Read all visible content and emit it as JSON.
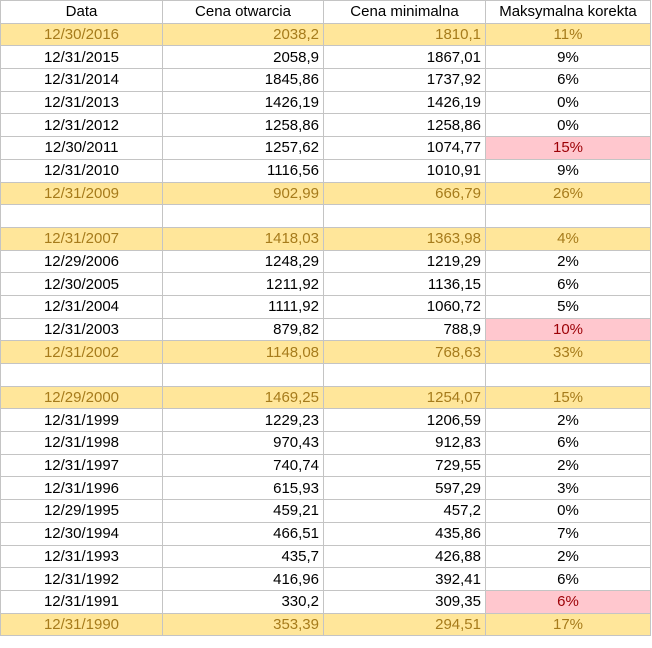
{
  "colors": {
    "highlight_fill": "#ffe69a",
    "highlight_text": "#a67b1b",
    "alert_fill": "#ffc7ce",
    "alert_text": "#9c0006",
    "grid_border": "#c4c4c4"
  },
  "table": {
    "headers": [
      "Data",
      "Cena otwarcia",
      "Cena minimalna",
      "Maksymalna korekta"
    ],
    "rows": [
      {
        "type": "highlight",
        "cells": [
          "12/30/2016",
          "2038,2",
          "1810,1",
          "11%"
        ],
        "alert": false
      },
      {
        "type": "normal",
        "cells": [
          "12/31/2015",
          "2058,9",
          "1867,01",
          "9%"
        ],
        "alert": false
      },
      {
        "type": "normal",
        "cells": [
          "12/31/2014",
          "1845,86",
          "1737,92",
          "6%"
        ],
        "alert": false
      },
      {
        "type": "normal",
        "cells": [
          "12/31/2013",
          "1426,19",
          "1426,19",
          "0%"
        ],
        "alert": false
      },
      {
        "type": "normal",
        "cells": [
          "12/31/2012",
          "1258,86",
          "1258,86",
          "0%"
        ],
        "alert": false
      },
      {
        "type": "normal",
        "cells": [
          "12/30/2011",
          "1257,62",
          "1074,77",
          "15%"
        ],
        "alert": true
      },
      {
        "type": "normal",
        "cells": [
          "12/31/2010",
          "1116,56",
          "1010,91",
          "9%"
        ],
        "alert": false
      },
      {
        "type": "highlight",
        "cells": [
          "12/31/2009",
          "902,99",
          "666,79",
          "26%"
        ],
        "alert": false
      },
      {
        "type": "blank",
        "cells": [
          "",
          "",
          "",
          ""
        ],
        "alert": false
      },
      {
        "type": "highlight",
        "cells": [
          "12/31/2007",
          "1418,03",
          "1363,98",
          "4%"
        ],
        "alert": false
      },
      {
        "type": "normal",
        "cells": [
          "12/29/2006",
          "1248,29",
          "1219,29",
          "2%"
        ],
        "alert": false
      },
      {
        "type": "normal",
        "cells": [
          "12/30/2005",
          "1211,92",
          "1136,15",
          "6%"
        ],
        "alert": false
      },
      {
        "type": "normal",
        "cells": [
          "12/31/2004",
          "1111,92",
          "1060,72",
          "5%"
        ],
        "alert": false
      },
      {
        "type": "normal",
        "cells": [
          "12/31/2003",
          "879,82",
          "788,9",
          "10%"
        ],
        "alert": true
      },
      {
        "type": "highlight",
        "cells": [
          "12/31/2002",
          "1148,08",
          "768,63",
          "33%"
        ],
        "alert": false
      },
      {
        "type": "blank",
        "cells": [
          "",
          "",
          "",
          ""
        ],
        "alert": false
      },
      {
        "type": "highlight",
        "cells": [
          "12/29/2000",
          "1469,25",
          "1254,07",
          "15%"
        ],
        "alert": false
      },
      {
        "type": "normal",
        "cells": [
          "12/31/1999",
          "1229,23",
          "1206,59",
          "2%"
        ],
        "alert": false
      },
      {
        "type": "normal",
        "cells": [
          "12/31/1998",
          "970,43",
          "912,83",
          "6%"
        ],
        "alert": false
      },
      {
        "type": "normal",
        "cells": [
          "12/31/1997",
          "740,74",
          "729,55",
          "2%"
        ],
        "alert": false
      },
      {
        "type": "normal",
        "cells": [
          "12/31/1996",
          "615,93",
          "597,29",
          "3%"
        ],
        "alert": false
      },
      {
        "type": "normal",
        "cells": [
          "12/29/1995",
          "459,21",
          "457,2",
          "0%"
        ],
        "alert": false
      },
      {
        "type": "normal",
        "cells": [
          "12/30/1994",
          "466,51",
          "435,86",
          "7%"
        ],
        "alert": false
      },
      {
        "type": "normal",
        "cells": [
          "12/31/1993",
          "435,7",
          "426,88",
          "2%"
        ],
        "alert": false
      },
      {
        "type": "normal",
        "cells": [
          "12/31/1992",
          "416,96",
          "392,41",
          "6%"
        ],
        "alert": false
      },
      {
        "type": "normal",
        "cells": [
          "12/31/1991",
          "330,2",
          "309,35",
          "6%"
        ],
        "alert": true
      },
      {
        "type": "highlight",
        "cells": [
          "12/31/1990",
          "353,39",
          "294,51",
          "17%"
        ],
        "alert": false
      }
    ]
  }
}
